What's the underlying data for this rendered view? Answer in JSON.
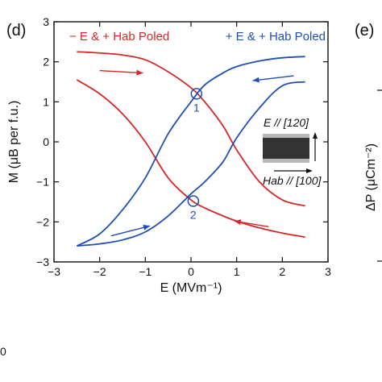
{
  "panels": {
    "left_letter": "(d)",
    "right_letter": "(e)",
    "right_ylabel": "ΔP (μCm⁻²)",
    "stray_label": "0"
  },
  "chart_data": {
    "type": "line",
    "title": "",
    "xlabel": "E (MVm⁻¹)",
    "ylabel": "M (μB per f.u.)",
    "xlim": [
      -3,
      3
    ],
    "ylim": [
      -3,
      3
    ],
    "xticks": [
      -3,
      -2,
      -1,
      0,
      1,
      2,
      3
    ],
    "yticks": [
      -3,
      -2,
      -1,
      0,
      1,
      2,
      3
    ],
    "xtick_labels": [
      "−3",
      "−2",
      "−1",
      "0",
      "1",
      "2",
      "3"
    ],
    "ytick_labels": [
      "−3",
      "−2",
      "−1",
      "0",
      "1",
      "2",
      "3"
    ],
    "grid": false,
    "legend": [
      {
        "text": "− E & + Hab Poled",
        "color": "#d62728",
        "placement": "top-left"
      },
      {
        "text": "+ E & + Hab Poled",
        "color": "#1f4fb4",
        "placement": "top-right"
      }
    ],
    "series": [
      {
        "color": "#d62728",
        "segments": [
          {
            "x": [
              -2.5,
              -2.0,
              -1.5,
              -1.0,
              -0.5,
              0.0,
              0.3,
              0.7,
              1.0,
              1.5,
              2.0,
              2.5
            ],
            "y": [
              2.25,
              2.22,
              2.17,
              2.05,
              1.75,
              1.35,
              1.0,
              0.4,
              -0.2,
              -1.0,
              -1.45,
              -1.6
            ]
          },
          {
            "x": [
              -2.5,
              -2.0,
              -1.5,
              -1.0,
              -0.5,
              0.0,
              0.3,
              0.7,
              1.0,
              1.5,
              2.0,
              2.5
            ],
            "y": [
              1.55,
              1.2,
              0.7,
              0.0,
              -0.9,
              -1.45,
              -1.65,
              -1.85,
              -1.98,
              -2.15,
              -2.28,
              -2.38
            ]
          }
        ],
        "arrows": [
          {
            "from": [
              -2.0,
              1.78
            ],
            "to": [
              -1.05,
              1.72
            ]
          },
          {
            "from": [
              1.7,
              -2.12
            ],
            "to": [
              0.95,
              -1.98
            ]
          }
        ]
      },
      {
        "color": "#1f4fb4",
        "segments": [
          {
            "x": [
              -2.5,
              -2.0,
              -1.5,
              -1.0,
              -0.5,
              0.0,
              0.3,
              0.7,
              1.0,
              1.5,
              2.0,
              2.5
            ],
            "y": [
              -2.6,
              -2.55,
              -2.45,
              -2.25,
              -1.85,
              -1.3,
              -1.0,
              -0.5,
              0.1,
              0.85,
              1.4,
              1.5
            ]
          },
          {
            "x": [
              -2.5,
              -2.0,
              -1.5,
              -1.0,
              -0.5,
              0.0,
              0.3,
              0.7,
              1.0,
              1.5,
              2.0,
              2.5
            ],
            "y": [
              -2.6,
              -2.3,
              -1.7,
              -0.9,
              0.2,
              1.0,
              1.42,
              1.72,
              1.88,
              2.02,
              2.1,
              2.13
            ]
          }
        ],
        "arrows": [
          {
            "from": [
              -1.75,
              -2.35
            ],
            "to": [
              -0.9,
              -2.1
            ]
          },
          {
            "from": [
              2.25,
              1.65
            ],
            "to": [
              1.35,
              1.53
            ]
          }
        ]
      }
    ],
    "markers": [
      {
        "label": "1",
        "x": 0.12,
        "y": 1.2,
        "color": "#1f4fb4"
      },
      {
        "label": "2",
        "x": 0.05,
        "y": -1.48,
        "color": "#1f4fb4"
      }
    ],
    "inset": {
      "label_top": "E // [120]",
      "label_bottom": "Hab // [100]",
      "slab_color": "#333333",
      "slab_edge_color": "#b8b8b8"
    }
  }
}
